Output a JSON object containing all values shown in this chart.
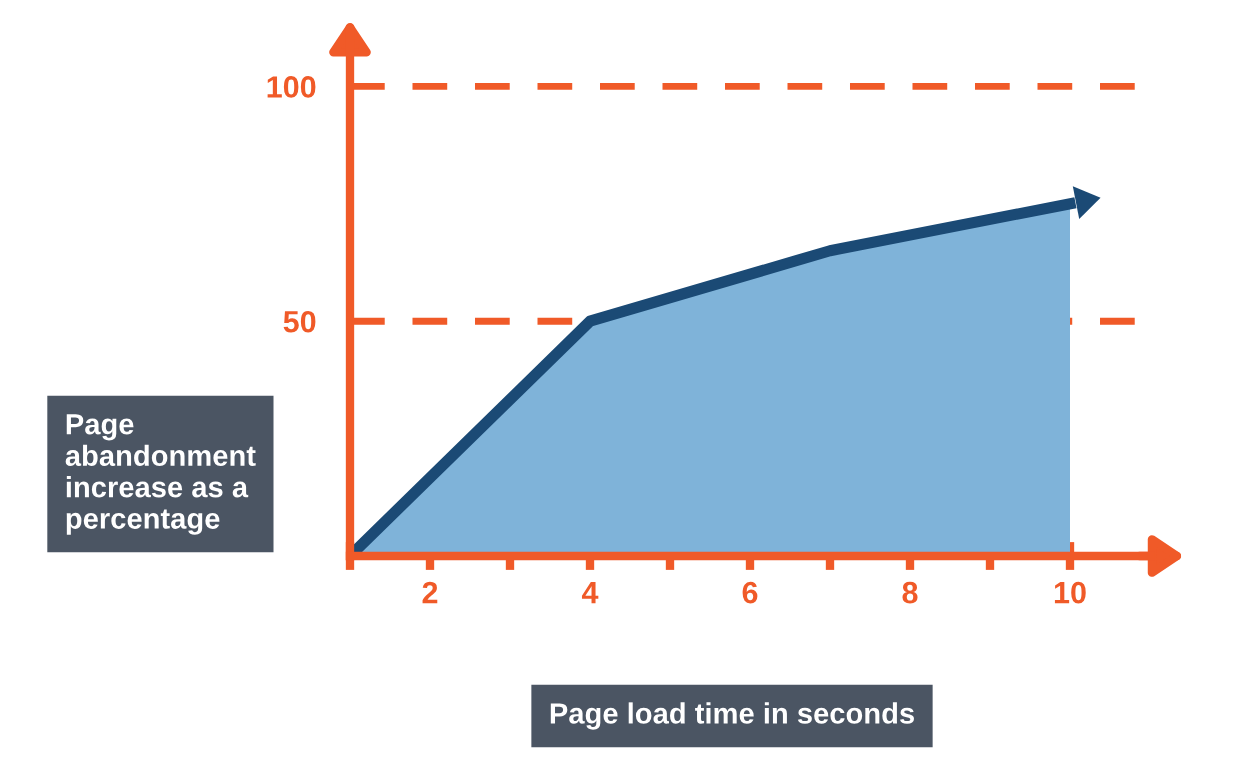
{
  "chart_data": {
    "type": "area",
    "xlabel": "Page load time in seconds",
    "ylabel": "Page abandonment increase as a percentage",
    "x": [
      1,
      4,
      7,
      10
    ],
    "series": [
      {
        "color": "#7fb3d9",
        "values": [
          0,
          50,
          65,
          75
        ]
      }
    ],
    "xlim": [
      1,
      11
    ],
    "ylim": [
      0,
      112
    ],
    "xticks": [
      {
        "value": 1,
        "label": null
      },
      2,
      {
        "value": 3,
        "label": null
      },
      4,
      {
        "value": 5,
        "label": null
      },
      6,
      {
        "value": 7,
        "label": null
      },
      8,
      {
        "value": 9,
        "label": null
      },
      10
    ],
    "yticks": [
      50,
      100
    ],
    "grid": "y",
    "line_style": "solid"
  }
}
